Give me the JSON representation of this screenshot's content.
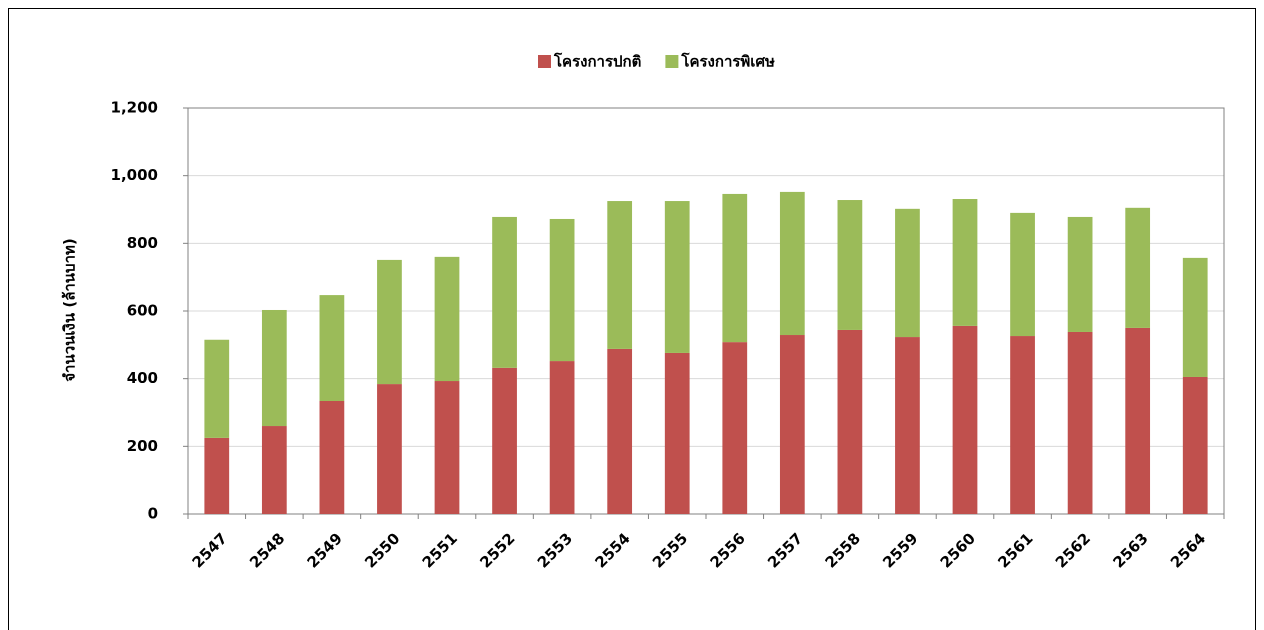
{
  "chart_data": {
    "type": "stacked_bar",
    "ylabel": "จำนวนเงิน (ล้านบาท)",
    "categories": [
      "2547",
      "2548",
      "2549",
      "2550",
      "2551",
      "2552",
      "2553",
      "2554",
      "2555",
      "2556",
      "2557",
      "2558",
      "2559",
      "2560",
      "2561",
      "2562",
      "2563",
      "2564"
    ],
    "series": [
      {
        "name": "โครงการปกติ",
        "color": "#c0504d",
        "values": [
          225,
          260,
          334,
          384,
          393,
          432,
          452,
          488,
          476,
          508,
          529,
          544,
          523,
          556,
          526,
          538,
          550,
          405
        ]
      },
      {
        "name": "โครงการพิเศษ",
        "color": "#9bbb59",
        "values": [
          290,
          343,
          313,
          367,
          367,
          446,
          420,
          437,
          449,
          438,
          423,
          384,
          379,
          375,
          364,
          340,
          355,
          352
        ]
      }
    ],
    "ylim": [
      0,
      1200
    ],
    "yticks": [
      0,
      200,
      400,
      600,
      800,
      {
        "value": 1000,
        "label": "1,000"
      },
      {
        "value": 1200,
        "label": "1,200"
      }
    ],
    "grid": true,
    "legend": "top"
  }
}
